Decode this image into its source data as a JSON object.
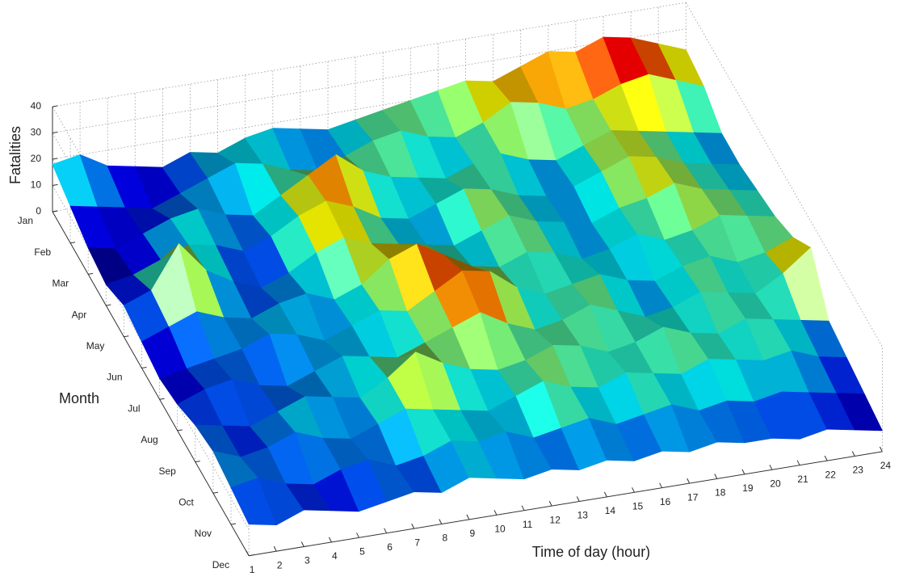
{
  "chart_data": {
    "type": "surface",
    "xlabel": "Time of day (hour)",
    "ylabel": "Month",
    "zlabel": "Fatalities",
    "x": [
      1,
      2,
      3,
      4,
      5,
      6,
      7,
      8,
      9,
      10,
      11,
      12,
      13,
      14,
      15,
      16,
      17,
      18,
      19,
      20,
      21,
      22,
      23,
      24
    ],
    "xlim": [
      1,
      24
    ],
    "xticks": [
      1,
      2,
      3,
      4,
      5,
      6,
      7,
      8,
      9,
      10,
      11,
      12,
      13,
      14,
      15,
      16,
      17,
      18,
      19,
      20,
      21,
      22,
      23,
      24
    ],
    "categories": [
      "Jan",
      "Feb",
      "Mar",
      "Apr",
      "May",
      "Jun",
      "Jul",
      "Aug",
      "Sep",
      "Oct",
      "Nov",
      "Dec"
    ],
    "zlim": [
      0,
      40
    ],
    "zticks": [
      0,
      10,
      20,
      30,
      40
    ],
    "grid": true,
    "colormap": "jet",
    "values": [
      [
        18,
        20,
        14,
        12,
        10,
        14,
        12,
        16,
        18,
        16,
        14,
        16,
        18,
        20,
        22,
        24,
        22,
        26,
        30,
        28,
        32,
        30,
        26,
        22
      ],
      [
        14,
        12,
        10,
        8,
        12,
        16,
        20,
        18,
        14,
        12,
        16,
        20,
        22,
        18,
        16,
        20,
        26,
        24,
        20,
        22,
        26,
        28,
        24,
        20
      ],
      [
        10,
        8,
        12,
        16,
        18,
        14,
        12,
        18,
        24,
        30,
        22,
        18,
        16,
        14,
        18,
        20,
        16,
        14,
        18,
        22,
        20,
        18,
        16,
        14
      ],
      [
        8,
        10,
        14,
        18,
        16,
        12,
        16,
        22,
        26,
        22,
        16,
        14,
        18,
        22,
        20,
        16,
        14,
        16,
        20,
        24,
        22,
        18,
        16,
        14
      ],
      [
        12,
        16,
        32,
        20,
        14,
        10,
        14,
        20,
        24,
        20,
        18,
        16,
        14,
        18,
        22,
        18,
        16,
        14,
        18,
        20,
        24,
        20,
        18,
        16
      ],
      [
        10,
        14,
        18,
        14,
        12,
        16,
        18,
        14,
        18,
        26,
        30,
        24,
        18,
        16,
        20,
        18,
        14,
        16,
        20,
        16,
        18,
        22,
        20,
        18
      ],
      [
        8,
        10,
        12,
        14,
        18,
        16,
        12,
        16,
        20,
        18,
        24,
        30,
        28,
        20,
        16,
        18,
        20,
        16,
        14,
        18,
        20,
        16,
        18,
        22
      ],
      [
        10,
        14,
        16,
        12,
        10,
        14,
        18,
        16,
        14,
        18,
        22,
        26,
        20,
        16,
        18,
        22,
        18,
        14,
        16,
        20,
        18,
        16,
        22,
        30
      ],
      [
        14,
        12,
        10,
        14,
        18,
        16,
        14,
        20,
        28,
        22,
        18,
        16,
        18,
        22,
        20,
        16,
        18,
        22,
        18,
        16,
        20,
        18,
        16,
        14
      ],
      [
        16,
        12,
        14,
        18,
        14,
        12,
        16,
        20,
        18,
        16,
        14,
        18,
        22,
        18,
        16,
        20,
        18,
        16,
        20,
        18,
        16,
        18,
        14,
        12
      ],
      [
        14,
        16,
        12,
        10,
        14,
        16,
        12,
        14,
        18,
        16,
        18,
        14,
        16,
        18,
        14,
        16,
        18,
        14,
        16,
        14,
        16,
        14,
        12,
        10
      ],
      [
        12,
        10,
        14,
        12,
        10,
        12,
        14,
        12,
        16,
        14,
        12,
        14,
        12,
        14,
        12,
        14,
        12,
        14,
        12,
        12,
        10,
        12,
        10,
        8
      ]
    ]
  }
}
